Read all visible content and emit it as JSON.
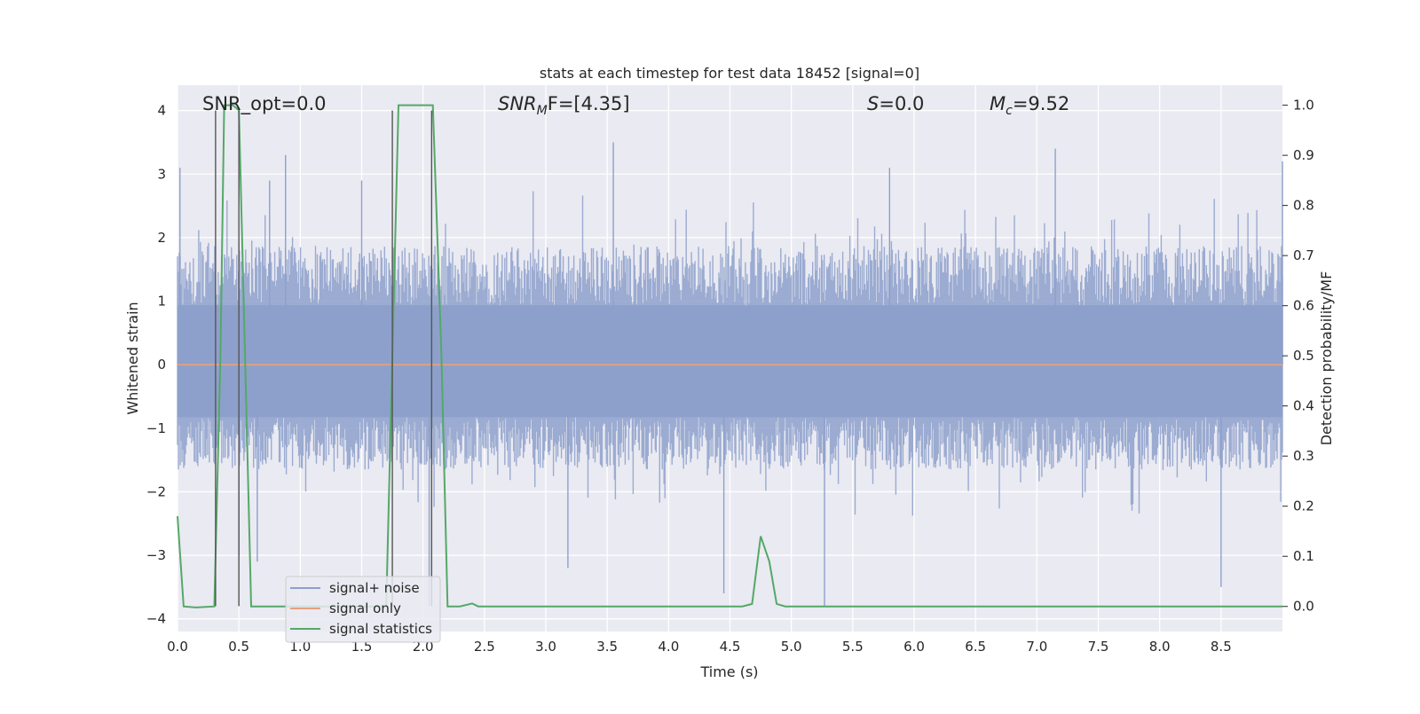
{
  "chart_data": {
    "type": "line",
    "title": "stats at each timestep for test data 18452 [signal=0]",
    "xlabel": "Time (s)",
    "ylabel": "Whitened strain",
    "y2label": "Detection probability/MF",
    "xlim": [
      0.0,
      9.0
    ],
    "ylim": [
      -4.2,
      4.4
    ],
    "y2lim": [
      -0.05,
      1.04
    ],
    "xticks": [
      0.0,
      0.5,
      1.0,
      1.5,
      2.0,
      2.5,
      3.0,
      3.5,
      4.0,
      4.5,
      5.0,
      5.5,
      6.0,
      6.5,
      7.0,
      7.5,
      8.0,
      8.5
    ],
    "xtick_labels": [
      "0.0",
      "0.5",
      "1.0",
      "1.5",
      "2.0",
      "2.5",
      "3.0",
      "3.5",
      "4.0",
      "4.5",
      "5.0",
      "5.5",
      "6.0",
      "6.5",
      "7.0",
      "7.5",
      "8.0",
      "8.5"
    ],
    "yticks": [
      -4,
      -3,
      -2,
      -1,
      0,
      1,
      2,
      3,
      4
    ],
    "ytick_labels": [
      "−4",
      "−3",
      "−2",
      "−1",
      "0",
      "1",
      "2",
      "3",
      "4"
    ],
    "y2ticks": [
      0.0,
      0.1,
      0.2,
      0.3,
      0.4,
      0.5,
      0.6,
      0.7,
      0.8,
      0.9,
      1.0
    ],
    "y2tick_labels": [
      "0.0",
      "0.1",
      "0.2",
      "0.3",
      "0.4",
      "0.5",
      "0.6",
      "0.7",
      "0.8",
      "0.9",
      "1.0"
    ],
    "grid": true,
    "legend_position": "lower-left",
    "series": [
      {
        "name": "signal+ noise",
        "color": "#8da0cb",
        "axis": "left",
        "description_values": "noise-like whitened strain samples spanning the full time range",
        "envelope": {
          "typical_upper": 1.7,
          "typical_lower": -1.5,
          "peak_upper": 3.5,
          "peak_lower": -3.8
        },
        "spikes": [
          [
            0.02,
            3.1
          ],
          [
            0.75,
            2.9
          ],
          [
            0.88,
            3.3
          ],
          [
            0.5,
            -3.0
          ],
          [
            0.65,
            -3.1
          ],
          [
            1.5,
            2.9
          ],
          [
            2.05,
            -3.8
          ],
          [
            3.18,
            -3.2
          ],
          [
            3.55,
            3.5
          ],
          [
            4.45,
            -3.6
          ],
          [
            5.27,
            -3.8
          ],
          [
            5.8,
            3.1
          ],
          [
            7.15,
            3.4
          ],
          [
            8.5,
            -3.5
          ],
          [
            9.0,
            3.2
          ]
        ]
      },
      {
        "name": "signal only",
        "color": "#e5a07f",
        "axis": "left",
        "x": [
          0.0,
          9.0
        ],
        "y": [
          0.0,
          0.0
        ]
      },
      {
        "name": "signal statistics",
        "color": "#55a868",
        "axis": "right",
        "x": [
          0.0,
          0.05,
          0.15,
          0.3,
          0.35,
          0.38,
          0.45,
          0.5,
          0.55,
          0.6,
          0.65,
          1.7,
          1.75,
          1.8,
          2.08,
          2.15,
          2.2,
          2.3,
          2.4,
          2.45,
          4.6,
          4.68,
          4.75,
          4.82,
          4.88,
          4.95,
          9.0
        ],
        "y": [
          0.18,
          0.0,
          -0.002,
          0.0,
          0.5,
          1.0,
          1.0,
          0.99,
          0.5,
          0.0,
          0.0,
          0.0,
          0.5,
          1.0,
          1.0,
          0.5,
          0.0,
          0.0,
          0.006,
          0.0,
          0.0,
          0.005,
          0.14,
          0.09,
          0.005,
          0.0,
          0.0
        ]
      }
    ],
    "vertical_lines": [
      0.31,
      0.5,
      1.75,
      2.07
    ],
    "vertical_line_color": "#555555",
    "annotations": {
      "snr_opt": "SNR_opt=0.0",
      "snr_mf_main": "SNR",
      "snr_mf_sub": "M",
      "snr_mf_rest": "F=[4.35]",
      "s_main": "S",
      "s_rest": "=0.0",
      "mc_main": "M",
      "mc_sub": "c",
      "mc_rest": "=9.52"
    },
    "colors": {
      "plot_background": "#eaeaf2",
      "grid": "#ffffff",
      "noise_fill": "#8da0cb"
    }
  }
}
